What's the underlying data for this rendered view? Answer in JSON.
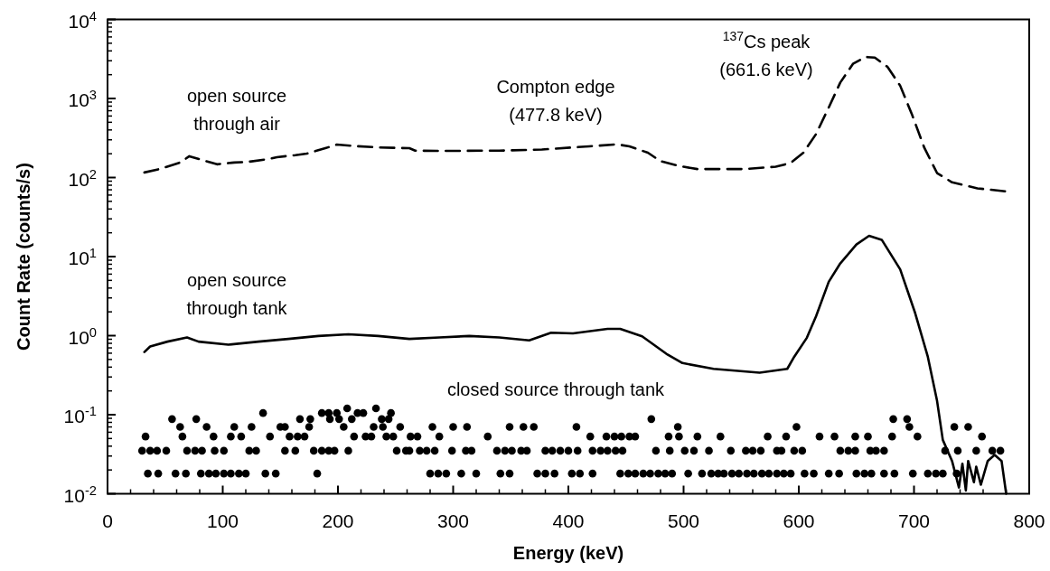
{
  "chart_data": {
    "type": "line",
    "xlabel": "Energy (keV)",
    "ylabel": "Count Rate (counts/s)",
    "log": "y",
    "xlim": [
      0,
      800
    ],
    "xticks": [
      0,
      100,
      200,
      300,
      400,
      500,
      600,
      700,
      800
    ],
    "ylim": [
      0.01,
      10000
    ],
    "yticks": [
      {
        "value": 0.01,
        "label": "10$^{-2}$"
      },
      {
        "value": 0.1,
        "label": "10$^{-1}$"
      },
      {
        "value": 1,
        "label": "10$^{0}$"
      },
      {
        "value": 10,
        "label": "10$^{1}$"
      },
      {
        "value": 100,
        "label": "10$^{2}$"
      },
      {
        "value": 1000,
        "label": "10$^{3}$"
      },
      {
        "value": 10000,
        "label": "10$^{4}$"
      }
    ],
    "grid": false,
    "legend": false,
    "annotations": [
      "Compton edge\n(477.8 keV)",
      "$^{137}$Cs peak\n(661.6 keV)"
    ],
    "series": [
      {
        "name": "open source\nthrough air",
        "type": "line",
        "line_style": "dashed",
        "color": "#000000",
        "x": [
          32,
          45,
          63,
          71,
          82,
          95,
          110,
          121,
          139,
          147,
          163,
          173,
          189,
          199,
          215,
          236,
          262,
          267,
          288,
          340,
          377,
          418,
          442,
          453,
          469,
          480,
          496,
          512,
          553,
          580,
          593,
          604,
          615,
          626,
          636,
          647,
          658,
          666,
          677,
          688,
          698,
          709,
          720,
          733,
          755,
          779
        ],
        "values": [
          116,
          128,
          155,
          186,
          167,
          147,
          155,
          157,
          171,
          181,
          192,
          201,
          235,
          261,
          250,
          240,
          235,
          219,
          217,
          219,
          226,
          248,
          263,
          248,
          206,
          161,
          140,
          128,
          128,
          137,
          153,
          206,
          355,
          769,
          1590,
          2740,
          3350,
          3290,
          2510,
          1450,
          641,
          237,
          114,
          87,
          73,
          67
        ]
      },
      {
        "name": "open source\nthrough tank",
        "type": "line",
        "line_style": "solid",
        "color": "#000000",
        "x": [
          32,
          37,
          52,
          69,
          79,
          105,
          131,
          157,
          183,
          209,
          235,
          262,
          288,
          314,
          340,
          366,
          385,
          404,
          434,
          445,
          464,
          485,
          499,
          526,
          566,
          590,
          596,
          607,
          615,
          626,
          636,
          650,
          661,
          672,
          688,
          701,
          712,
          720,
          725,
          733,
          739,
          742,
          745,
          747,
          752,
          754,
          758,
          764,
          770,
          776,
          780
        ],
        "values": [
          0.62,
          0.73,
          0.84,
          0.95,
          0.84,
          0.77,
          0.84,
          0.91,
          0.99,
          1.04,
          0.99,
          0.91,
          0.95,
          0.99,
          0.95,
          0.87,
          1.09,
          1.07,
          1.22,
          1.22,
          0.98,
          0.59,
          0.45,
          0.38,
          0.34,
          0.38,
          0.54,
          0.94,
          1.76,
          4.8,
          8.2,
          14.2,
          18.3,
          16.3,
          6.9,
          1.93,
          0.54,
          0.15,
          0.048,
          0.026,
          0.012,
          0.024,
          0.011,
          0.026,
          0.014,
          0.022,
          0.013,
          0.026,
          0.031,
          0.026,
          0.01
        ]
      },
      {
        "name": "closed source through tank",
        "type": "scatter",
        "marker": "circle",
        "color": "#000000",
        "x": [
          35,
          44,
          59,
          68,
          81,
          88,
          94,
          101,
          107,
          114,
          120,
          137,
          146,
          182,
          280,
          287,
          294,
          307,
          320,
          341,
          349,
          373,
          380,
          388,
          403,
          410,
          421,
          445,
          452,
          458,
          465,
          471,
          478,
          484,
          490,
          504,
          516,
          524,
          530,
          535,
          542,
          548,
          555,
          561,
          568,
          574,
          581,
          587,
          593,
          605,
          613,
          626,
          635,
          650,
          657,
          663,
          674,
          683,
          699,
          712,
          719,
          725,
          737,
          30,
          37,
          43,
          51,
          69,
          76,
          82,
          93,
          101,
          123,
          129,
          154,
          163,
          179,
          186,
          192,
          197,
          209,
          251,
          259,
          262,
          271,
          277,
          284,
          299,
          311,
          316,
          338,
          345,
          351,
          359,
          364,
          380,
          386,
          393,
          400,
          408,
          421,
          428,
          434,
          441,
          447,
          476,
          488,
          501,
          509,
          522,
          541,
          554,
          560,
          567,
          581,
          585,
          596,
          603,
          636,
          643,
          649,
          662,
          667,
          674,
          727,
          738,
          754,
          768,
          775,
          33,
          65,
          92,
          107,
          116,
          141,
          158,
          165,
          171,
          214,
          224,
          229,
          242,
          248,
          263,
          269,
          288,
          330,
          419,
          433,
          440,
          446,
          453,
          458,
          487,
          496,
          512,
          532,
          573,
          589,
          618,
          631,
          649,
          660,
          681,
          703,
          759,
          63,
          86,
          110,
          125,
          150,
          154,
          175,
          205,
          231,
          239,
          254,
          282,
          300,
          312,
          349,
          361,
          370,
          407,
          495,
          598,
          696,
          735,
          747,
          56,
          77,
          167,
          176,
          193,
          201,
          212,
          238,
          244,
          472,
          682,
          694,
          135,
          186,
          192,
          199,
          217,
          222,
          246,
          208,
          233
        ],
        "values": [
          0.018,
          0.018,
          0.018,
          0.018,
          0.018,
          0.018,
          0.018,
          0.018,
          0.018,
          0.018,
          0.018,
          0.018,
          0.018,
          0.018,
          0.018,
          0.018,
          0.018,
          0.018,
          0.018,
          0.018,
          0.018,
          0.018,
          0.018,
          0.018,
          0.018,
          0.018,
          0.018,
          0.018,
          0.018,
          0.018,
          0.018,
          0.018,
          0.018,
          0.018,
          0.018,
          0.018,
          0.018,
          0.018,
          0.018,
          0.018,
          0.018,
          0.018,
          0.018,
          0.018,
          0.018,
          0.018,
          0.018,
          0.018,
          0.018,
          0.018,
          0.018,
          0.018,
          0.018,
          0.018,
          0.018,
          0.018,
          0.018,
          0.018,
          0.018,
          0.018,
          0.018,
          0.018,
          0.018,
          0.035,
          0.035,
          0.035,
          0.035,
          0.035,
          0.035,
          0.035,
          0.035,
          0.035,
          0.035,
          0.035,
          0.035,
          0.035,
          0.035,
          0.035,
          0.035,
          0.035,
          0.035,
          0.035,
          0.035,
          0.035,
          0.035,
          0.035,
          0.035,
          0.035,
          0.035,
          0.035,
          0.035,
          0.035,
          0.035,
          0.035,
          0.035,
          0.035,
          0.035,
          0.035,
          0.035,
          0.035,
          0.035,
          0.035,
          0.035,
          0.035,
          0.035,
          0.035,
          0.035,
          0.035,
          0.035,
          0.035,
          0.035,
          0.035,
          0.035,
          0.035,
          0.035,
          0.035,
          0.035,
          0.035,
          0.035,
          0.035,
          0.035,
          0.035,
          0.035,
          0.035,
          0.035,
          0.035,
          0.035,
          0.035,
          0.035,
          0.053,
          0.053,
          0.053,
          0.053,
          0.053,
          0.053,
          0.053,
          0.053,
          0.053,
          0.053,
          0.053,
          0.053,
          0.053,
          0.053,
          0.053,
          0.053,
          0.053,
          0.053,
          0.053,
          0.053,
          0.053,
          0.053,
          0.053,
          0.053,
          0.053,
          0.053,
          0.053,
          0.053,
          0.053,
          0.053,
          0.053,
          0.053,
          0.053,
          0.053,
          0.053,
          0.053,
          0.053,
          0.07,
          0.07,
          0.07,
          0.07,
          0.07,
          0.07,
          0.07,
          0.07,
          0.07,
          0.07,
          0.07,
          0.07,
          0.07,
          0.07,
          0.07,
          0.07,
          0.07,
          0.07,
          0.07,
          0.07,
          0.07,
          0.07,
          0.07,
          0.088,
          0.088,
          0.088,
          0.088,
          0.088,
          0.088,
          0.088,
          0.088,
          0.088,
          0.088,
          0.088,
          0.088,
          0.105,
          0.105,
          0.105,
          0.105,
          0.105,
          0.105,
          0.105,
          0.12,
          0.12
        ]
      }
    ]
  }
}
